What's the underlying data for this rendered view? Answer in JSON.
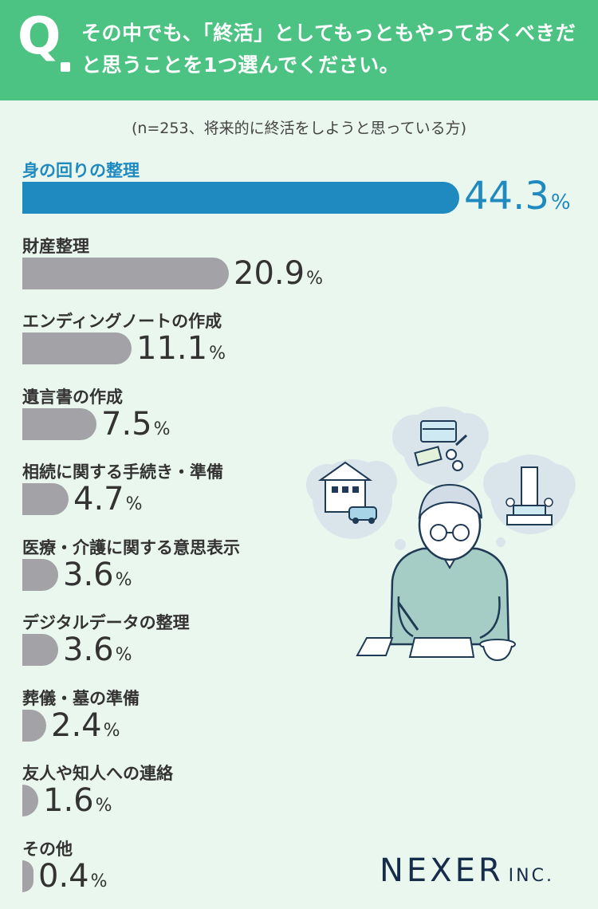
{
  "header": {
    "q_label": "Q",
    "question": "その中でも、「終活」としてもっともやっておくべきだと思うことを1つ選んでください。"
  },
  "chart_data": {
    "type": "bar",
    "orientation": "horizontal",
    "subtitle": "(n=253、将来的に終活をしようと思っている方)",
    "unit": "%",
    "xlim": [
      0,
      44.3
    ],
    "categories": [
      "身の回りの整理",
      "財産整理",
      "エンディングノートの作成",
      "遺言書の作成",
      "相続に関する手続き・準備",
      "医療・介護に関する意思表示",
      "デジタルデータの整理",
      "葬儀・墓の準備",
      "友人や知人への連絡",
      "その他"
    ],
    "values": [
      44.3,
      20.9,
      11.1,
      7.5,
      4.7,
      3.6,
      3.6,
      2.4,
      1.6,
      0.4
    ],
    "value_labels": [
      "44.3",
      "20.9",
      "11.1",
      "7.5",
      "4.7",
      "3.6",
      "3.6",
      "2.4",
      "1.6",
      "0.4"
    ],
    "highlight_index": 0
  },
  "colors": {
    "header": "#4cc383",
    "background": "#eaf7ee",
    "highlight": "#1f8ac0",
    "bar": "#a2a2a7",
    "logo": "#152d4a"
  },
  "logo": {
    "name": "NEXER",
    "suffix": "INC."
  }
}
